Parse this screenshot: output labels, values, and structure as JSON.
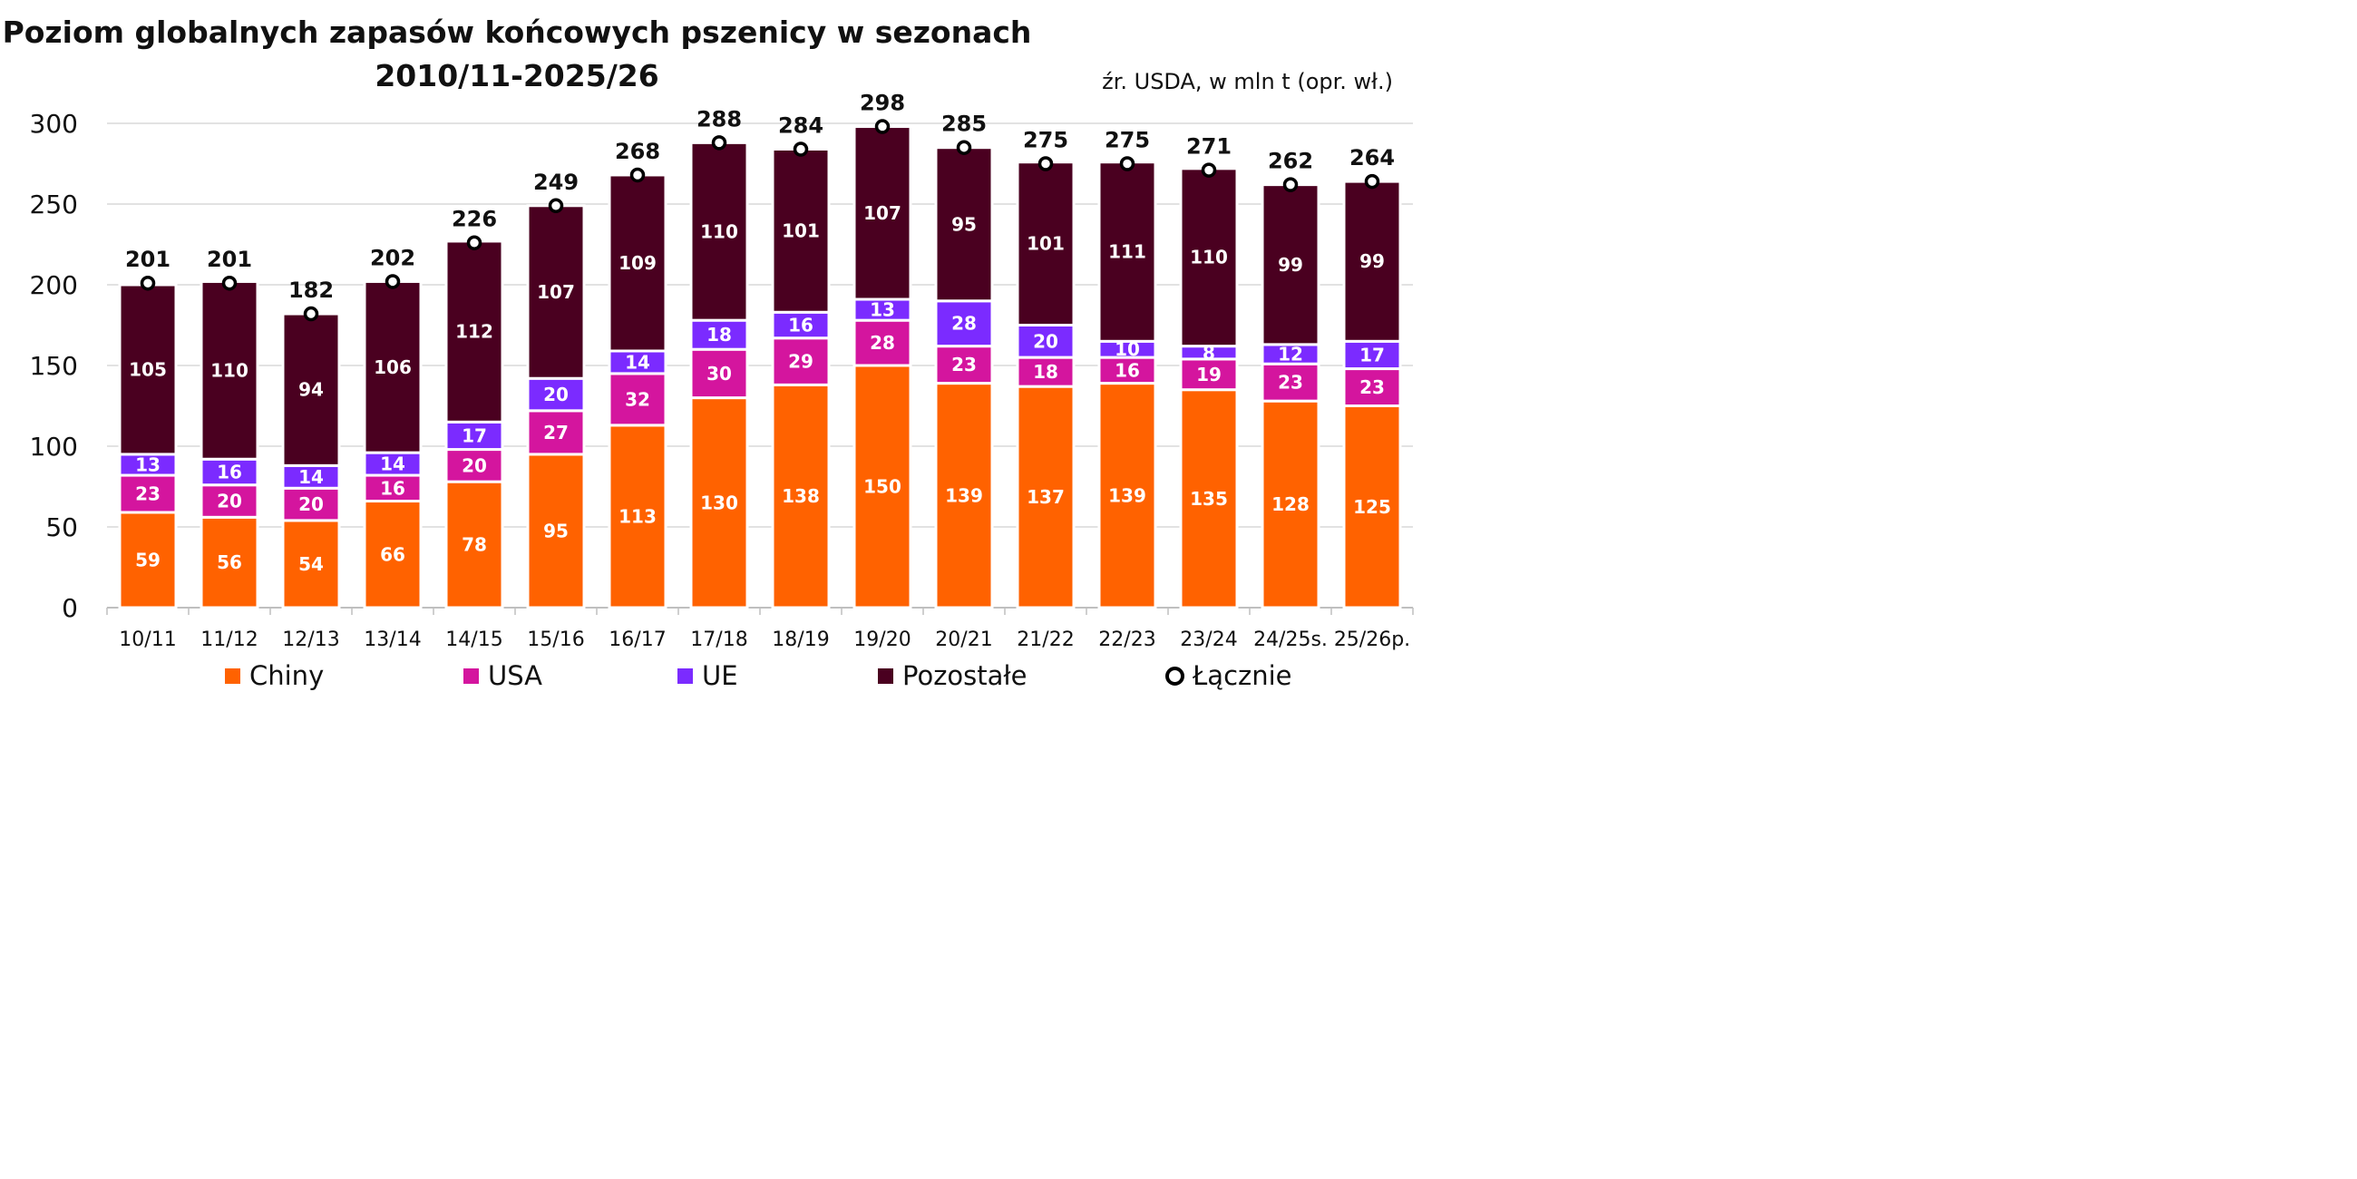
{
  "title_line1": "Poziom globalnych zapasów końcowych pszenicy w sezonach",
  "title_line2": "2010/11-2025/26",
  "source": "źr. USDA, w mln t (opr. wł.)",
  "chart_data": {
    "type": "bar",
    "stacked": true,
    "categories": [
      "10/11",
      "11/12",
      "12/13",
      "13/14",
      "14/15",
      "15/16",
      "16/17",
      "17/18",
      "18/19",
      "19/20",
      "20/21",
      "21/22",
      "22/23",
      "23/24",
      "24/25s.",
      "25/26p."
    ],
    "series": [
      {
        "name": "Chiny",
        "color": "#FF6200",
        "values": [
          59,
          56,
          54,
          66,
          78,
          95,
          113,
          130,
          138,
          150,
          139,
          137,
          139,
          135,
          128,
          125
        ]
      },
      {
        "name": "USA",
        "color": "#D4159E",
        "values": [
          23,
          20,
          20,
          16,
          20,
          27,
          32,
          30,
          29,
          28,
          23,
          18,
          16,
          19,
          23,
          23
        ]
      },
      {
        "name": "UE",
        "color": "#7B2BFF",
        "values": [
          13,
          16,
          14,
          14,
          17,
          20,
          14,
          18,
          16,
          13,
          28,
          20,
          10,
          8,
          12,
          17
        ]
      },
      {
        "name": "Pozostałe",
        "color": "#4A0020",
        "values": [
          105,
          110,
          94,
          106,
          112,
          107,
          109,
          110,
          101,
          107,
          95,
          101,
          111,
          110,
          99,
          99
        ]
      }
    ],
    "total": {
      "name": "Łącznie",
      "values": [
        201,
        201,
        182,
        202,
        226,
        249,
        268,
        288,
        284,
        298,
        285,
        275,
        275,
        271,
        262,
        264
      ]
    },
    "yticks": [
      0,
      50,
      100,
      150,
      200,
      250,
      300
    ],
    "ylim": [
      0,
      300
    ],
    "grid": true,
    "legend_position": "bottom"
  }
}
